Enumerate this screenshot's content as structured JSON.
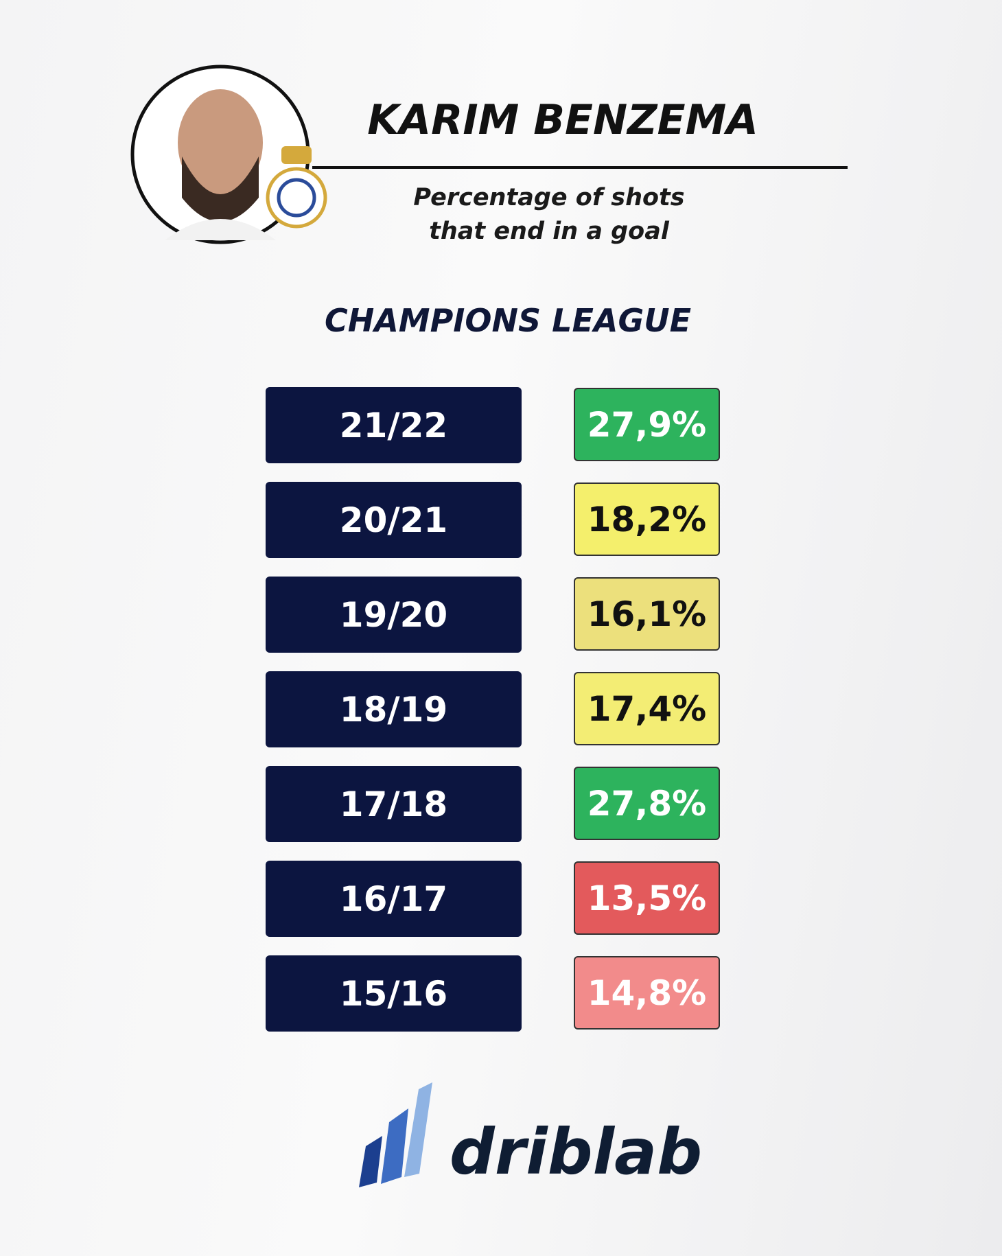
{
  "header": {
    "title": "KARIM BENZEMA",
    "subtitle_lines": [
      "Percentage of shots",
      "that end in a goal"
    ]
  },
  "section": "CHAMPIONS LEAGUE",
  "table": {
    "rows": [
      {
        "season": "21/22",
        "value": "27,9%",
        "color": "#2db35d",
        "text_color": "#ffffff"
      },
      {
        "season": "20/21",
        "value": "18,2%",
        "color": "#f4ef6c",
        "text_color": "#111111"
      },
      {
        "season": "19/20",
        "value": "16,1%",
        "color": "#ece07c",
        "text_color": "#111111"
      },
      {
        "season": "18/19",
        "value": "17,4%",
        "color": "#f3ed74",
        "text_color": "#111111"
      },
      {
        "season": "17/18",
        "value": "27,8%",
        "color": "#2db35d",
        "text_color": "#ffffff"
      },
      {
        "season": "16/17",
        "value": "13,5%",
        "color": "#e35a5c",
        "text_color": "#ffffff"
      },
      {
        "season": "15/16",
        "value": "14,8%",
        "color": "#f28b8b",
        "text_color": "#ffffff"
      }
    ]
  },
  "footer": {
    "brand": "driblab"
  }
}
